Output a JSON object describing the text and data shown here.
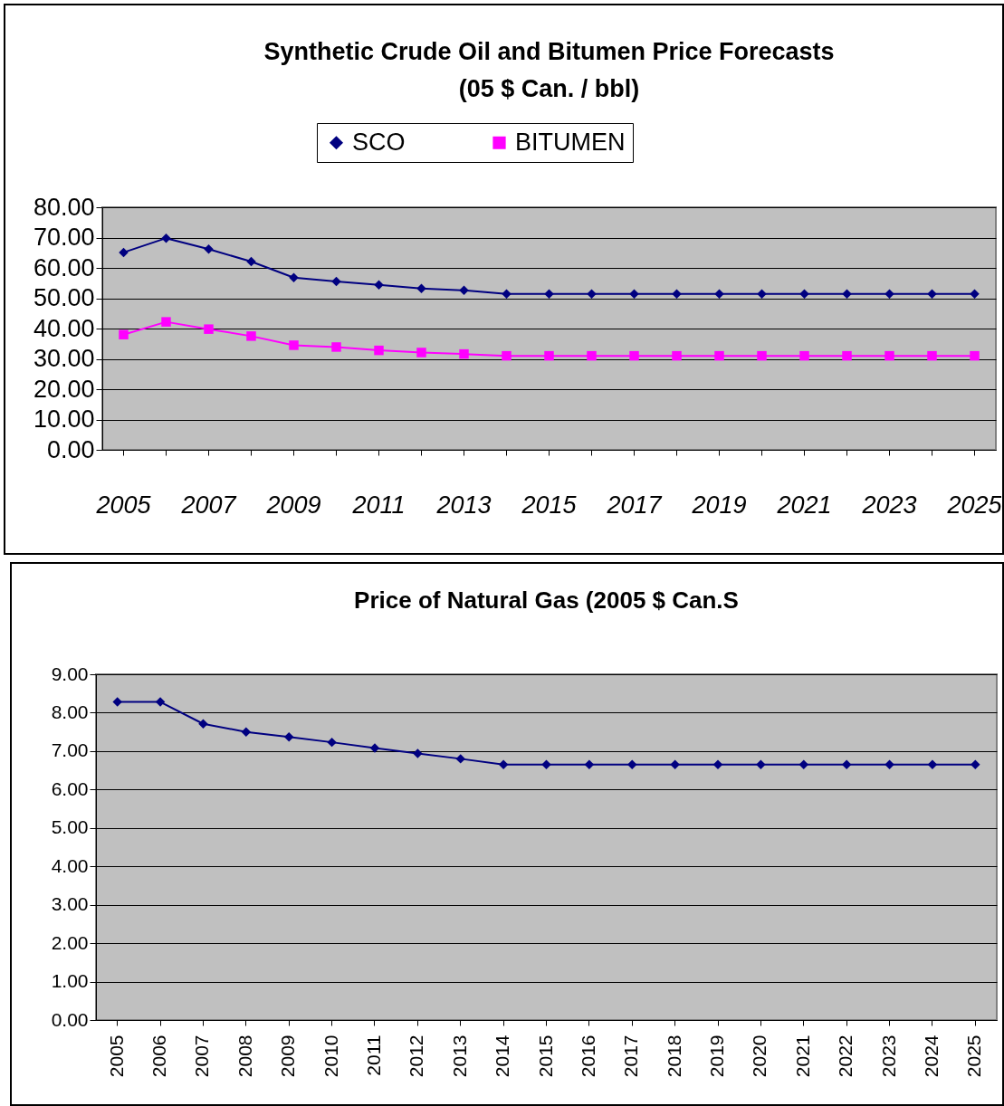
{
  "chart_data": [
    {
      "type": "line",
      "title": "Synthetic Crude Oil and Bitumen Price Forecasts\n(05 $ Can. / bbl)",
      "categories": [
        "2005",
        null,
        "2007",
        null,
        "2009",
        null,
        "2011",
        null,
        "2013",
        null,
        "2015",
        null,
        "2017",
        null,
        "2019",
        null,
        "2021",
        null,
        "2023",
        null,
        "2025"
      ],
      "series": [
        {
          "name": "SCO",
          "color": "#000080",
          "marker": "diamond",
          "values": [
            65.1,
            69.8,
            66.2,
            62.1,
            56.8,
            55.5,
            54.4,
            53.2,
            52.6,
            51.4,
            51.4,
            51.4,
            51.4,
            51.4,
            51.4,
            51.4,
            51.4,
            51.4,
            51.4,
            51.4,
            51.4
          ]
        },
        {
          "name": "BITUMEN",
          "color": "#ff00ff",
          "marker": "square",
          "values": [
            38.0,
            42.2,
            39.8,
            37.5,
            34.5,
            33.9,
            32.8,
            32.1,
            31.6,
            31.0,
            31.0,
            31.0,
            31.0,
            31.0,
            31.0,
            31.0,
            31.0,
            31.0,
            31.0,
            31.0,
            31.0
          ]
        }
      ],
      "ylim": [
        0,
        80
      ],
      "yticks": [
        {
          "value": 0,
          "label": "0.00"
        },
        {
          "value": 10,
          "label": "10.00"
        },
        {
          "value": 20,
          "label": "20.00"
        },
        {
          "value": 30,
          "label": "30.00"
        },
        {
          "value": 40,
          "label": "40.00"
        },
        {
          "value": 50,
          "label": "50.00"
        },
        {
          "value": 60,
          "label": "60.00"
        },
        {
          "value": 70,
          "label": "70.00"
        },
        {
          "value": 80,
          "label": "80.00"
        }
      ],
      "grid": "y",
      "legend": "top"
    },
    {
      "type": "line",
      "title": "Price of Natural Gas (2005 $ Can.S",
      "categories": [
        "2005",
        "2006",
        "2007",
        "2008",
        "2009",
        "2010",
        "2011",
        "2012",
        "2013",
        "2014",
        "2015",
        "2016",
        "2017",
        "2018",
        "2019",
        "2020",
        "2021",
        "2022",
        "2023",
        "2024",
        "2025"
      ],
      "series": [
        {
          "color": "#000080",
          "marker": "diamond",
          "values": [
            8.28,
            8.28,
            7.71,
            7.5,
            7.37,
            7.23,
            7.08,
            6.94,
            6.8,
            6.65,
            6.65,
            6.65,
            6.65,
            6.65,
            6.65,
            6.65,
            6.65,
            6.65,
            6.65,
            6.65,
            6.65
          ]
        }
      ],
      "ylim": [
        0,
        9
      ],
      "yticks": [
        {
          "value": 0,
          "label": "0.00"
        },
        {
          "value": 1,
          "label": "1.00"
        },
        {
          "value": 2,
          "label": "2.00"
        },
        {
          "value": 3,
          "label": "3.00"
        },
        {
          "value": 4,
          "label": "4.00"
        },
        {
          "value": 5,
          "label": "5.00"
        },
        {
          "value": 6,
          "label": "6.00"
        },
        {
          "value": 7,
          "label": "7.00"
        },
        {
          "value": 8,
          "label": "8.00"
        },
        {
          "value": 9,
          "label": "9.00"
        }
      ],
      "grid": "y"
    }
  ]
}
